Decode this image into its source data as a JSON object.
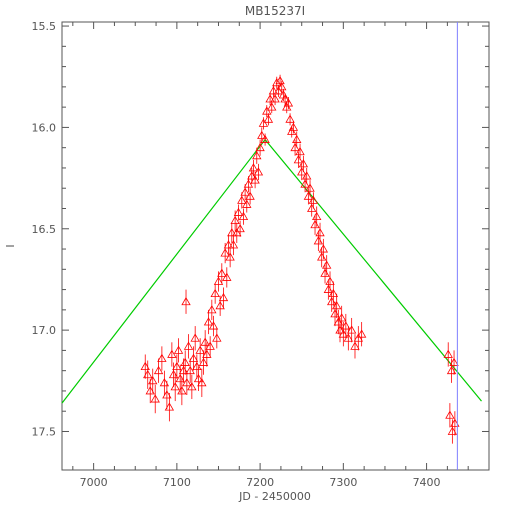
{
  "chart_data": {
    "type": "scatter",
    "title": "MB15237I",
    "xlabel": "JD - 2450000",
    "ylabel": "I",
    "xlim": [
      6962,
      7475
    ],
    "ylim": [
      15.48,
      17.69
    ],
    "y_inverted": true,
    "grid": false,
    "legend": "none",
    "x_ticks": [
      7000,
      7100,
      7200,
      7300,
      7400
    ],
    "x_tick_labels": [
      "7000",
      "7100",
      "7200",
      "7300",
      "7400"
    ],
    "y_ticks": [
      15.5,
      16.0,
      16.5,
      17.0,
      17.5
    ],
    "y_tick_labels": [
      "15.5",
      "16.0",
      "16.5",
      "17.0",
      "17.5"
    ],
    "series": [
      {
        "marker": "triangle",
        "color": "#ff0000",
        "points": [
          [
            7062,
            17.18,
            0.06
          ],
          [
            7065,
            17.22,
            0.07
          ],
          [
            7068,
            17.3,
            0.06
          ],
          [
            7071,
            17.25,
            0.06
          ],
          [
            7074,
            17.34,
            0.07
          ],
          [
            7078,
            17.2,
            0.06
          ],
          [
            7082,
            17.14,
            0.06
          ],
          [
            7085,
            17.26,
            0.06
          ],
          [
            7088,
            17.32,
            0.07
          ],
          [
            7091,
            17.38,
            0.07
          ],
          [
            7094,
            17.12,
            0.06
          ],
          [
            7096,
            17.22,
            0.06
          ],
          [
            7098,
            17.28,
            0.07
          ],
          [
            7100,
            17.18,
            0.06
          ],
          [
            7102,
            17.1,
            0.06
          ],
          [
            7104,
            17.24,
            0.07
          ],
          [
            7106,
            17.3,
            0.07
          ],
          [
            7108,
            17.2,
            0.06
          ],
          [
            7110,
            17.16,
            0.06
          ],
          [
            7111,
            16.86,
            0.06
          ],
          [
            7112,
            17.26,
            0.06
          ],
          [
            7114,
            17.08,
            0.06
          ],
          [
            7116,
            17.2,
            0.06
          ],
          [
            7118,
            17.28,
            0.06
          ],
          [
            7120,
            17.14,
            0.06
          ],
          [
            7122,
            17.04,
            0.06
          ],
          [
            7124,
            17.18,
            0.06
          ],
          [
            7126,
            17.24,
            0.06
          ],
          [
            7128,
            17.1,
            0.06
          ],
          [
            7130,
            17.26,
            0.07
          ],
          [
            7132,
            17.16,
            0.06
          ],
          [
            7134,
            17.06,
            0.06
          ],
          [
            7136,
            17.12,
            0.06
          ],
          [
            7138,
            16.96,
            0.06
          ],
          [
            7140,
            17.08,
            0.05
          ],
          [
            7142,
            16.9,
            0.05
          ],
          [
            7144,
            16.98,
            0.05
          ],
          [
            7146,
            16.82,
            0.05
          ],
          [
            7148,
            17.04,
            0.05
          ],
          [
            7150,
            16.76,
            0.05
          ],
          [
            7152,
            16.88,
            0.05
          ],
          [
            7154,
            16.72,
            0.05
          ],
          [
            7156,
            16.84,
            0.05
          ],
          [
            7158,
            16.62,
            0.05
          ],
          [
            7160,
            16.74,
            0.05
          ],
          [
            7162,
            16.58,
            0.05
          ],
          [
            7164,
            16.64,
            0.05
          ],
          [
            7166,
            16.52,
            0.05
          ],
          [
            7168,
            16.58,
            0.05
          ],
          [
            7170,
            16.46,
            0.05
          ],
          [
            7172,
            16.52,
            0.05
          ],
          [
            7174,
            16.42,
            0.04
          ],
          [
            7176,
            16.5,
            0.04
          ],
          [
            7178,
            16.36,
            0.04
          ],
          [
            7180,
            16.44,
            0.04
          ],
          [
            7182,
            16.32,
            0.04
          ],
          [
            7184,
            16.38,
            0.04
          ],
          [
            7186,
            16.28,
            0.04
          ],
          [
            7188,
            16.34,
            0.04
          ],
          [
            7190,
            16.24,
            0.04
          ],
          [
            7192,
            16.2,
            0.04
          ],
          [
            7194,
            16.26,
            0.04
          ],
          [
            7196,
            16.14,
            0.04
          ],
          [
            7198,
            16.22,
            0.04
          ],
          [
            7200,
            16.1,
            0.04
          ],
          [
            7202,
            16.04,
            0.04
          ],
          [
            7204,
            15.98,
            0.03
          ],
          [
            7206,
            16.06,
            0.03
          ],
          [
            7208,
            15.92,
            0.03
          ],
          [
            7210,
            15.96,
            0.03
          ],
          [
            7212,
            15.86,
            0.03
          ],
          [
            7214,
            15.9,
            0.03
          ],
          [
            7216,
            15.82,
            0.03
          ],
          [
            7218,
            15.86,
            0.03
          ],
          [
            7220,
            15.78,
            0.03
          ],
          [
            7222,
            15.82,
            0.03
          ],
          [
            7224,
            15.77,
            0.03
          ],
          [
            7226,
            15.8,
            0.03
          ],
          [
            7228,
            15.84,
            0.03
          ],
          [
            7230,
            15.86,
            0.03
          ],
          [
            7232,
            15.9,
            0.03
          ],
          [
            7234,
            15.88,
            0.03
          ],
          [
            7236,
            15.96,
            0.03
          ],
          [
            7238,
            16.02,
            0.03
          ],
          [
            7240,
            16.0,
            0.03
          ],
          [
            7242,
            16.1,
            0.04
          ],
          [
            7244,
            16.06,
            0.04
          ],
          [
            7246,
            16.16,
            0.04
          ],
          [
            7248,
            16.12,
            0.04
          ],
          [
            7250,
            16.22,
            0.04
          ],
          [
            7252,
            16.18,
            0.04
          ],
          [
            7254,
            16.28,
            0.04
          ],
          [
            7256,
            16.24,
            0.04
          ],
          [
            7258,
            16.34,
            0.04
          ],
          [
            7260,
            16.3,
            0.04
          ],
          [
            7262,
            16.4,
            0.04
          ],
          [
            7264,
            16.36,
            0.04
          ],
          [
            7266,
            16.48,
            0.05
          ],
          [
            7268,
            16.44,
            0.05
          ],
          [
            7270,
            16.56,
            0.05
          ],
          [
            7272,
            16.52,
            0.05
          ],
          [
            7274,
            16.64,
            0.05
          ],
          [
            7276,
            16.6,
            0.05
          ],
          [
            7278,
            16.72,
            0.05
          ],
          [
            7280,
            16.68,
            0.05
          ],
          [
            7282,
            16.8,
            0.05
          ],
          [
            7284,
            16.76,
            0.05
          ],
          [
            7286,
            16.86,
            0.05
          ],
          [
            7288,
            16.82,
            0.06
          ],
          [
            7290,
            16.92,
            0.06
          ],
          [
            7292,
            16.88,
            0.06
          ],
          [
            7294,
            16.96,
            0.06
          ],
          [
            7296,
            17.0,
            0.06
          ],
          [
            7298,
            16.94,
            0.06
          ],
          [
            7300,
            17.02,
            0.06
          ],
          [
            7303,
            16.98,
            0.06
          ],
          [
            7306,
            17.04,
            0.06
          ],
          [
            7310,
            17.0,
            0.06
          ],
          [
            7314,
            17.08,
            0.06
          ],
          [
            7318,
            17.04,
            0.06
          ],
          [
            7322,
            17.02,
            0.06
          ],
          [
            7426,
            17.12,
            0.06
          ],
          [
            7428,
            17.42,
            0.06
          ],
          [
            7430,
            17.2,
            0.06
          ],
          [
            7431,
            17.5,
            0.06
          ],
          [
            7433,
            17.16,
            0.06
          ],
          [
            7434,
            17.46,
            0.06
          ]
        ]
      }
    ],
    "model_line": {
      "color": "#00cc00",
      "points": [
        [
          6962,
          17.36
        ],
        [
          7206,
          16.06
        ],
        [
          7466,
          17.35
        ]
      ]
    },
    "vertical_line": {
      "color": "#8080ff",
      "x": 7437
    }
  }
}
